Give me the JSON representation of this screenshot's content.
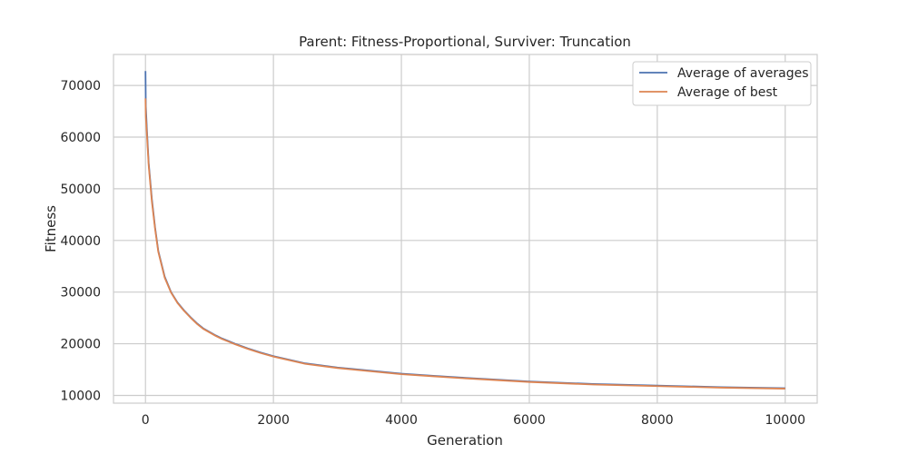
{
  "chart_data": {
    "type": "line",
    "title": "Parent: Fitness-Proportional, Surviver: Truncation",
    "xlabel": "Generation",
    "ylabel": "Fitness",
    "xlim": [
      -500,
      10500
    ],
    "ylim": [
      8500,
      76000
    ],
    "xticks": [
      0,
      2000,
      4000,
      6000,
      8000,
      10000
    ],
    "xtick_labels": [
      "0",
      "2000",
      "4000",
      "6000",
      "8000",
      "10000"
    ],
    "yticks": [
      10000,
      20000,
      30000,
      40000,
      50000,
      60000,
      70000
    ],
    "ytick_labels": [
      "10000",
      "20000",
      "30000",
      "40000",
      "50000",
      "60000",
      "70000"
    ],
    "grid": true,
    "legend_position": "top-right",
    "series": [
      {
        "name": "Average of averages",
        "color": "#4c72b0",
        "x": [
          0,
          5,
          20,
          50,
          100,
          150,
          200,
          300,
          400,
          500,
          600,
          700,
          800,
          900,
          1000,
          1100,
          1200,
          1400,
          1600,
          1800,
          2000,
          2500,
          3000,
          3500,
          4000,
          4500,
          5000,
          6000,
          7000,
          8000,
          9000,
          10000
        ],
        "y": [
          72800,
          66000,
          62000,
          55000,
          48000,
          42500,
          38000,
          33000,
          30000,
          28000,
          26500,
          25200,
          24000,
          23000,
          22300,
          21600,
          21000,
          20000,
          19100,
          18300,
          17600,
          16200,
          15400,
          14800,
          14200,
          13800,
          13400,
          12700,
          12200,
          11900,
          11600,
          11400
        ]
      },
      {
        "name": "Average of best",
        "color": "#dd8452",
        "x": [
          0,
          5,
          20,
          50,
          100,
          150,
          200,
          300,
          400,
          500,
          600,
          700,
          800,
          900,
          1000,
          1100,
          1200,
          1400,
          1600,
          1800,
          2000,
          2500,
          3000,
          3500,
          4000,
          4500,
          5000,
          6000,
          7000,
          8000,
          9000,
          10000
        ],
        "y": [
          67500,
          64000,
          61000,
          54500,
          47500,
          42200,
          37800,
          32800,
          29900,
          27900,
          26400,
          25100,
          23900,
          22900,
          22200,
          21500,
          20900,
          19900,
          19000,
          18200,
          17500,
          16100,
          15300,
          14700,
          14100,
          13700,
          13300,
          12600,
          12100,
          11800,
          11500,
          11300
        ]
      }
    ]
  }
}
